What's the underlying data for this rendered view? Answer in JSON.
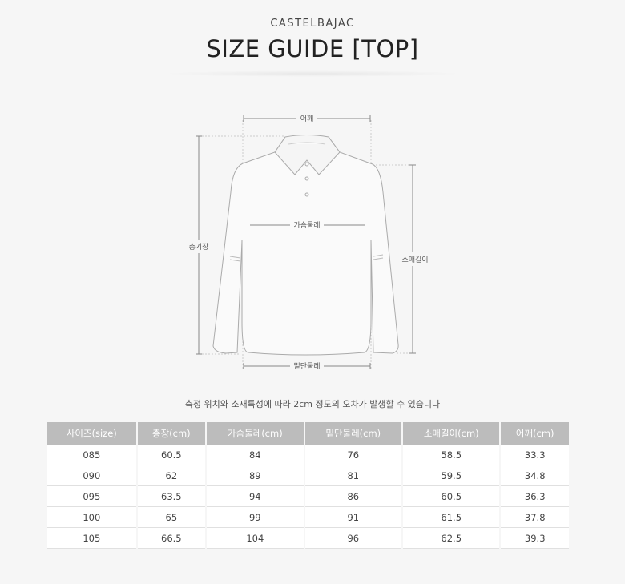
{
  "header": {
    "brand": "CASTELBAJAC",
    "title": "SIZE GUIDE [TOP]"
  },
  "diagram": {
    "labels": {
      "shoulder": "어깨",
      "chest": "가슴둘레",
      "total_length": "총기장",
      "sleeve": "소매길이",
      "hem": "밑단둘레"
    }
  },
  "note": "측정 위치와 소재특성에 따라 2cm 정도의 오차가 발생할 수 있습니다",
  "table": {
    "headers": [
      "사이즈(size)",
      "총장(cm)",
      "가슴둘레(cm)",
      "밑단둘레(cm)",
      "소매길이(cm)",
      "어깨(cm)"
    ],
    "rows": [
      [
        "085",
        "60.5",
        "84",
        "76",
        "58.5",
        "33.3"
      ],
      [
        "090",
        "62",
        "89",
        "81",
        "59.5",
        "34.8"
      ],
      [
        "095",
        "63.5",
        "94",
        "86",
        "60.5",
        "36.3"
      ],
      [
        "100",
        "65",
        "99",
        "91",
        "61.5",
        "37.8"
      ],
      [
        "105",
        "66.5",
        "104",
        "96",
        "62.5",
        "39.3"
      ]
    ]
  }
}
